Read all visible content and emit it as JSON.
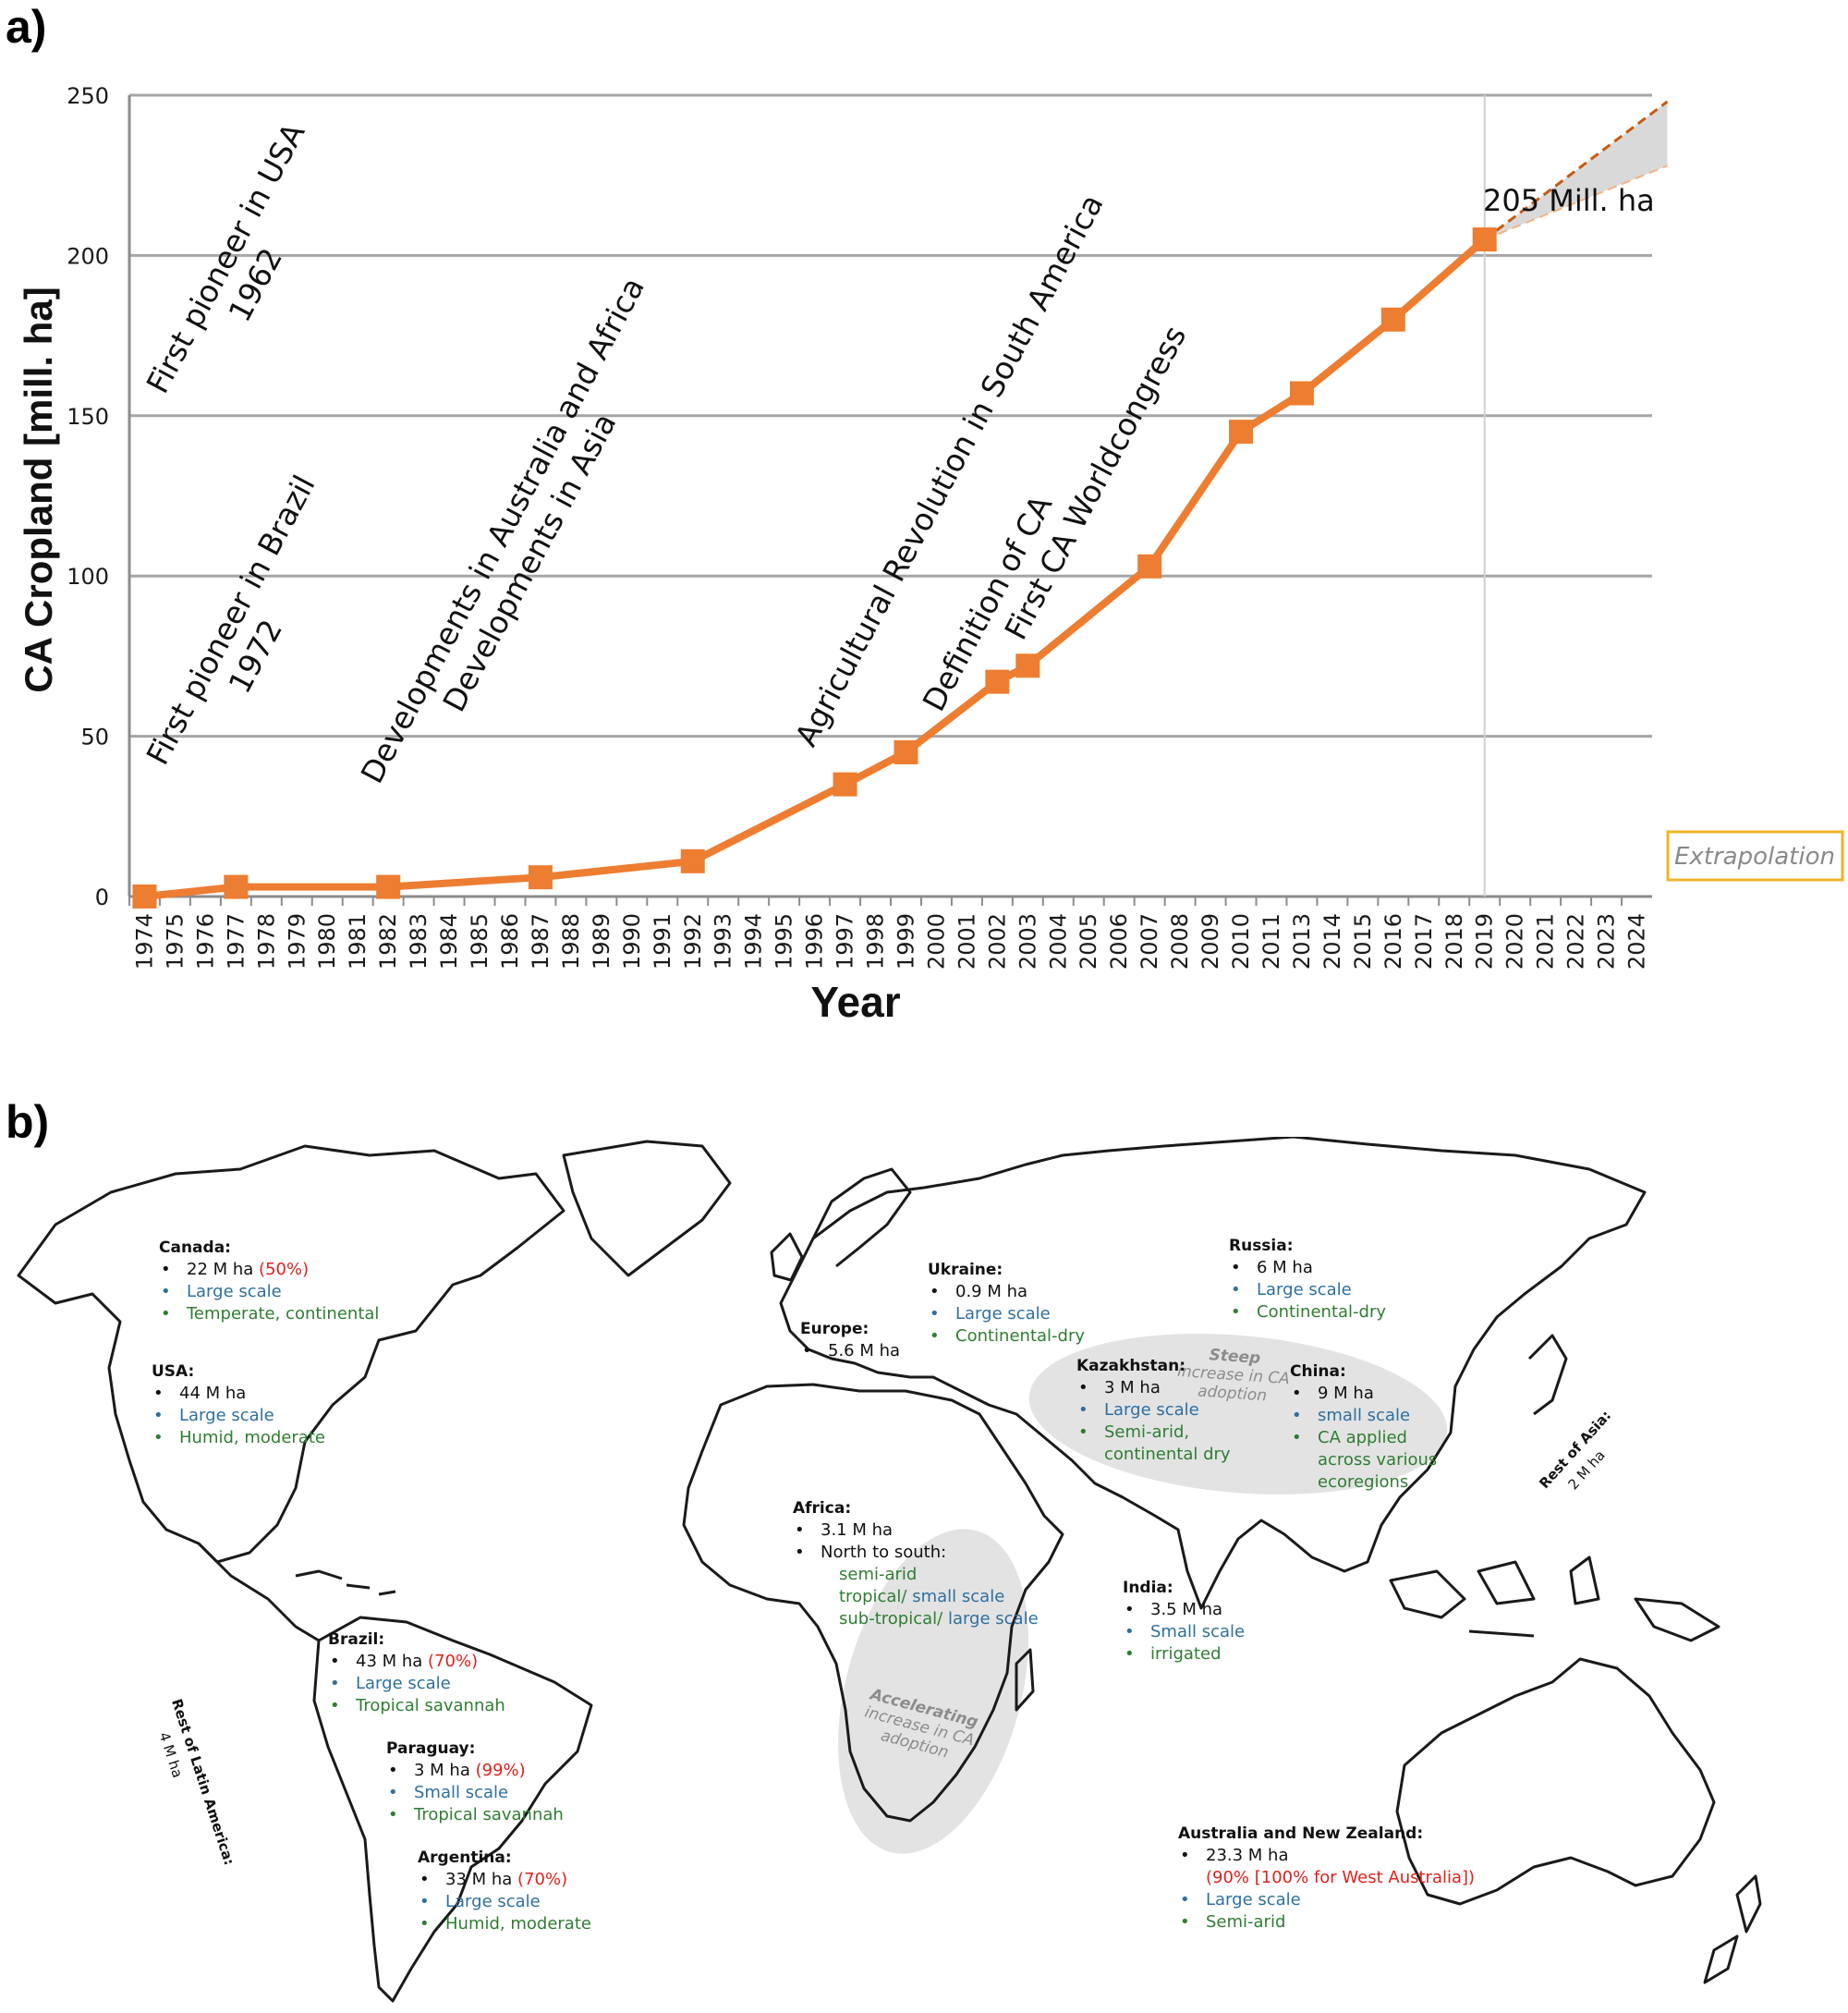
{
  "panel_a_label": "a)",
  "panel_b_label": "b)",
  "chart_data": {
    "type": "line",
    "xlabel": "Year",
    "ylabel": "CA Cropland [mill. ha]",
    "ylim": [
      0,
      250
    ],
    "yticks": [
      0,
      50,
      100,
      150,
      200,
      250
    ],
    "grid": true,
    "categories": [
      "1974",
      "1975",
      "1976",
      "1977",
      "1978",
      "1979",
      "1980",
      "1981",
      "1982",
      "1983",
      "1984",
      "1985",
      "1986",
      "1987",
      "1988",
      "1989",
      "1990",
      "1991",
      "1992",
      "1993",
      "1994",
      "1995",
      "1996",
      "1997",
      "1998",
      "1999",
      "2000",
      "2001",
      "2002",
      "2003",
      "2004",
      "2005",
      "2006",
      "2007",
      "2008",
      "2009",
      "2010",
      "2011",
      "2013",
      "2014",
      "2015",
      "2016",
      "2017",
      "2018",
      "2019",
      "2020",
      "2021",
      "2022",
      "2023",
      "2024"
    ],
    "series": [
      {
        "name": "",
        "color": "#ed7d31",
        "x": [
          "1974",
          "1977",
          "1982",
          "1987",
          "1992",
          "1997",
          "1999",
          "2002",
          "2003",
          "2007",
          "2010",
          "2013",
          "2016",
          "2019"
        ],
        "values": [
          0,
          3,
          3,
          6,
          11,
          35,
          45,
          67,
          72,
          103,
          145,
          157,
          180,
          205
        ]
      }
    ],
    "extrapolation": {
      "label": "Extrapolation",
      "from": "2019",
      "to": "2024",
      "upper_end": 248,
      "lower_end": 228,
      "box_color": "#f0b429",
      "fill": "#d9d9d9",
      "line_color": "#c55a11"
    },
    "peak_label": "205 Mill. ha",
    "milestones": [
      {
        "lines": [
          "First pioneer in USA",
          "1962"
        ],
        "x": "1974"
      },
      {
        "lines": [
          "First pioneer in Brazil",
          "1972"
        ],
        "x": "1974"
      },
      {
        "lines": [
          "Developments in Australia and Africa",
          "Developments in Asia"
        ],
        "x": "1981"
      },
      {
        "lines": [
          "Agricultural Revolution in South America"
        ],
        "x": "1993"
      },
      {
        "lines": [
          "Definition of CA",
          "First CA Worldcongress"
        ],
        "x": "1998"
      }
    ]
  },
  "map": {
    "regions": [
      {
        "id": "canada",
        "name": "Canada:",
        "items": [
          {
            "text": "22 M ha ",
            "extra": "(50%)",
            "color": "black"
          },
          {
            "text": "Large scale",
            "color": "blue"
          },
          {
            "text": "Temperate, continental",
            "color": "green"
          }
        ]
      },
      {
        "id": "usa",
        "name": "USA:",
        "items": [
          {
            "text": "44 M ha",
            "color": "black"
          },
          {
            "text": "Large scale",
            "color": "blue"
          },
          {
            "text": "Humid, moderate",
            "color": "green"
          }
        ]
      },
      {
        "id": "brazil",
        "name": "Brazil:",
        "items": [
          {
            "text": "43 M ha ",
            "extra": "(70%)",
            "color": "black"
          },
          {
            "text": "Large scale",
            "color": "blue"
          },
          {
            "text": "Tropical savannah",
            "color": "green"
          }
        ]
      },
      {
        "id": "paraguay",
        "name": "Paraguay:",
        "items": [
          {
            "text": "3 M ha ",
            "extra": "(99%)",
            "color": "black"
          },
          {
            "text": "Small scale",
            "color": "blue"
          },
          {
            "text": "Tropical savannah",
            "color": "green"
          }
        ]
      },
      {
        "id": "argentina",
        "name": "Argentina:",
        "items": [
          {
            "text": "33 M ha ",
            "extra": "(70%)",
            "color": "black"
          },
          {
            "text": "Large scale",
            "color": "blue"
          },
          {
            "text": "Humid, moderate",
            "color": "green"
          }
        ]
      },
      {
        "id": "europe",
        "name": "Europe:",
        "items": [
          {
            "text": "5.6 M ha",
            "color": "black"
          }
        ]
      },
      {
        "id": "ukraine",
        "name": "Ukraine:",
        "items": [
          {
            "text": "0.9 M ha",
            "color": "black"
          },
          {
            "text": "Large scale",
            "color": "blue"
          },
          {
            "text": "Continental-dry",
            "color": "green"
          }
        ]
      },
      {
        "id": "russia",
        "name": "Russia:",
        "items": [
          {
            "text": "6 M ha",
            "color": "black"
          },
          {
            "text": "Large scale",
            "color": "blue"
          },
          {
            "text": "Continental-dry",
            "color": "green"
          }
        ]
      },
      {
        "id": "kazakhstan",
        "name": "Kazakhstan:",
        "items": [
          {
            "text": "3 M ha",
            "color": "black"
          },
          {
            "text": "Large scale",
            "color": "blue"
          },
          {
            "text": "Semi-arid,",
            "cont": "continental dry",
            "color": "green"
          }
        ]
      },
      {
        "id": "china",
        "name": "China:",
        "items": [
          {
            "text": "9 M ha",
            "color": "black"
          },
          {
            "text": "small scale",
            "color": "blue"
          },
          {
            "text": "CA applied",
            "cont2": [
              "across various",
              "ecoregions"
            ],
            "color": "green"
          }
        ]
      },
      {
        "id": "india",
        "name": "India:",
        "items": [
          {
            "text": "3.5 M ha",
            "color": "black"
          },
          {
            "text": "Small scale",
            "color": "blue"
          },
          {
            "text": "irrigated",
            "color": "green"
          }
        ]
      },
      {
        "id": "australia",
        "name": "Australia and New Zealand:",
        "items": [
          {
            "text": "23.3 M ha",
            "red_line": "(90% [100% for West Australia])",
            "color": "black"
          },
          {
            "text": "Large scale",
            "color": "blue"
          },
          {
            "text": "Semi-arid",
            "color": "green"
          }
        ]
      }
    ],
    "africa": {
      "name": "Africa:",
      "line1": "3.1 M ha",
      "line2": "North to south:",
      "line3": "semi-arid",
      "line4a": "tropical/ ",
      "line4b": "small scale",
      "line5a": "sub-tropical/ ",
      "line5b": "large scale"
    },
    "rest_latam": {
      "title": "Rest of Latin America:",
      "value": "4 M ha"
    },
    "rest_asia": {
      "title": "Rest of Asia:",
      "value": "2 M ha"
    },
    "steep": {
      "bold": "Steep",
      "rest": [
        "increase in CA",
        "adoption"
      ]
    },
    "accelerating": {
      "bold": "Accelerating",
      "rest": [
        "increase in CA",
        "adoption"
      ]
    },
    "colors": {
      "black": "#111111",
      "blue": "#2e6f9e",
      "green": "#2f7d32",
      "red": "#e0201b",
      "blob": "#e3e3e3",
      "coast": "#1a1a1a"
    }
  }
}
